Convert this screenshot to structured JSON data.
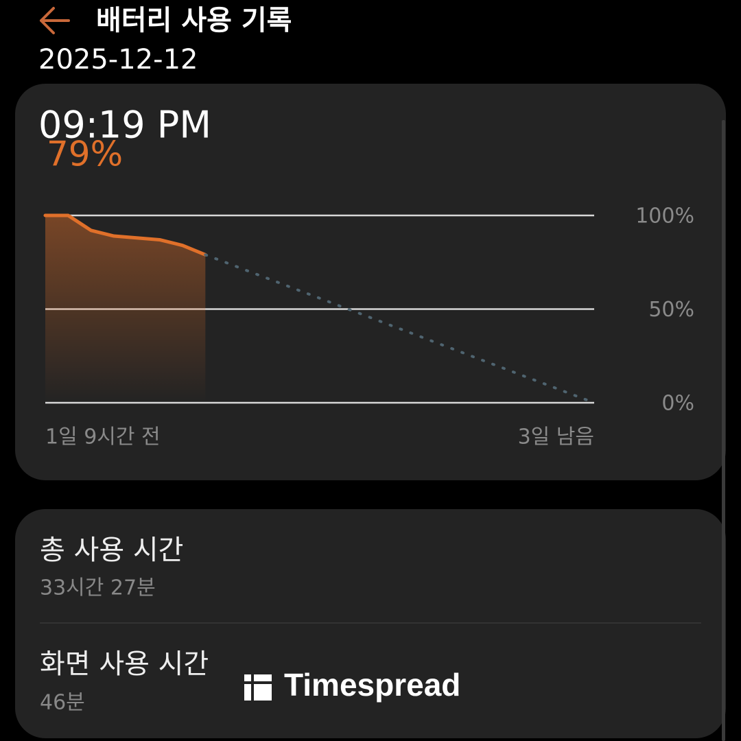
{
  "header": {
    "title": "배터리 사용 기록",
    "date": "2025-12-12"
  },
  "chart_data": {
    "type": "line",
    "subtitle": "09:19 PM",
    "categories": [
      "1일 9시간 전",
      null,
      null,
      null,
      null,
      null,
      null,
      null,
      null,
      null,
      null,
      null,
      null,
      null,
      null,
      null,
      null,
      null,
      null,
      null,
      null,
      null,
      null,
      null,
      "3일 남음"
    ],
    "series": [
      {
        "color": "#e0702a",
        "values": [
          100,
          100,
          92,
          89,
          88,
          87,
          84,
          79,
          null,
          null,
          null,
          null,
          null,
          null,
          null,
          null,
          null,
          null,
          null,
          null,
          null,
          null,
          null,
          null,
          null
        ],
        "value_labels": [
          null,
          null,
          null,
          null,
          null,
          null,
          null,
          "79%",
          null,
          null,
          null,
          null,
          null,
          null,
          null,
          null,
          null,
          null,
          null,
          null,
          null,
          null,
          null,
          null,
          null
        ],
        "area": true
      },
      {
        "color": "#4f6470",
        "dashed": true,
        "values": [
          null,
          null,
          null,
          null,
          null,
          null,
          null,
          79,
          74.4,
          69.7,
          65.1,
          60.4,
          55.8,
          51.1,
          46.5,
          41.8,
          37.2,
          32.5,
          27.9,
          23.2,
          18.6,
          13.9,
          9.3,
          4.6,
          0
        ]
      }
    ],
    "ylim": [
      0,
      100
    ],
    "yticks": [
      {
        "value": 100,
        "label": "100%"
      },
      {
        "value": 50,
        "label": "50%"
      },
      {
        "value": 0,
        "label": "0%"
      }
    ],
    "grid": true
  },
  "usage": {
    "rows": [
      {
        "label": "총 사용 시간",
        "value": "33시간 27분"
      },
      {
        "label": "화면 사용 시간",
        "value": "46분"
      }
    ]
  },
  "watermark": {
    "text": "Timespread"
  }
}
